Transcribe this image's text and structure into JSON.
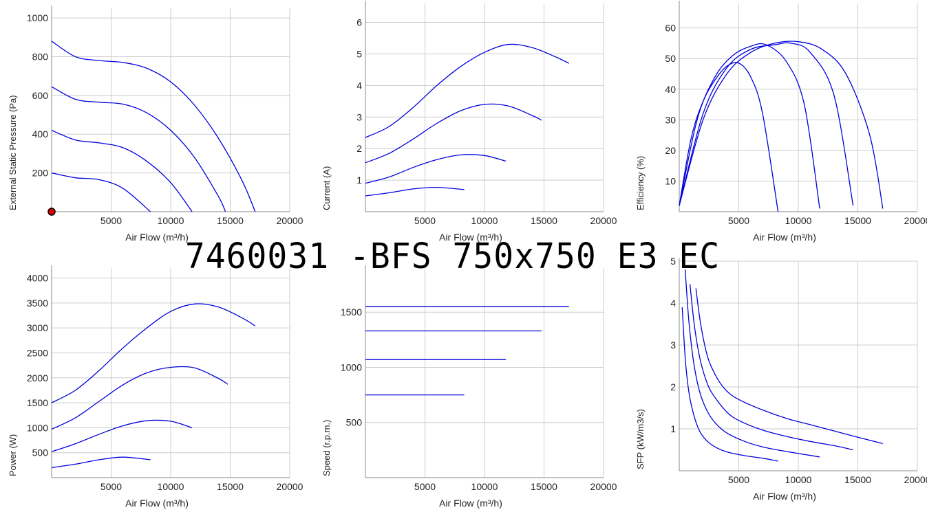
{
  "title": "7460031 -BFS 750x750 E3 EC",
  "colors": {
    "curve": "#0000dd",
    "grid": "#cccccc",
    "axis": "#888888",
    "marker_fill": "#dd0000"
  },
  "chart_data": [
    {
      "type": "line",
      "xlabel": "Air Flow (m³/h)",
      "ylabel": "External Static Pressure (Pa)",
      "xlim": [
        0,
        20000
      ],
      "ylim": [
        0,
        1050
      ],
      "xticks": [
        "5000",
        "10000",
        "15000",
        "20000"
      ],
      "yticks": [
        "200",
        "400",
        "600",
        "800",
        "1000"
      ],
      "marker": {
        "x": 0,
        "y": 0
      },
      "series": [
        {
          "x": [
            0,
            2000,
            4000,
            6000,
            8000,
            10000,
            12000,
            14000,
            16000,
            17100
          ],
          "y": [
            880,
            800,
            780,
            770,
            740,
            670,
            550,
            380,
            160,
            0
          ]
        },
        {
          "x": [
            0,
            2000,
            4000,
            6000,
            8000,
            10000,
            12000,
            14000,
            14600
          ],
          "y": [
            645,
            580,
            565,
            555,
            510,
            420,
            280,
            80,
            0
          ]
        },
        {
          "x": [
            0,
            2000,
            4000,
            6000,
            8000,
            10000,
            11800
          ],
          "y": [
            420,
            370,
            355,
            330,
            260,
            150,
            0
          ]
        },
        {
          "x": [
            0,
            2000,
            4000,
            6000,
            8300
          ],
          "y": [
            200,
            175,
            165,
            120,
            0
          ]
        }
      ]
    },
    {
      "type": "line",
      "xlabel": "Air Flow (m³/h)",
      "ylabel": "Current (A)",
      "xlim": [
        0,
        20000
      ],
      "ylim": [
        0,
        6.6
      ],
      "xticks": [
        "5000",
        "10000",
        "15000",
        "20000"
      ],
      "yticks": [
        "1",
        "2",
        "3",
        "4",
        "5",
        "6"
      ],
      "series": [
        {
          "x": [
            0,
            2000,
            4000,
            6000,
            8000,
            10000,
            12000,
            14000,
            16000,
            17100
          ],
          "y": [
            2.35,
            2.7,
            3.3,
            4.0,
            4.6,
            5.05,
            5.3,
            5.2,
            4.9,
            4.7
          ]
        },
        {
          "x": [
            0,
            2000,
            4000,
            6000,
            8000,
            10000,
            12000,
            14000,
            14800
          ],
          "y": [
            1.55,
            1.85,
            2.3,
            2.8,
            3.2,
            3.4,
            3.35,
            3.05,
            2.9
          ]
        },
        {
          "x": [
            0,
            2000,
            4000,
            6000,
            8000,
            10000,
            11800
          ],
          "y": [
            0.9,
            1.1,
            1.4,
            1.65,
            1.8,
            1.78,
            1.6
          ]
        },
        {
          "x": [
            0,
            2000,
            4000,
            6000,
            8300
          ],
          "y": [
            0.5,
            0.6,
            0.72,
            0.77,
            0.7
          ]
        }
      ]
    },
    {
      "type": "line",
      "xlabel": "Air Flow (m³/h)",
      "ylabel": "Efficiency (%)",
      "xlim": [
        0,
        20000
      ],
      "ylim": [
        0,
        68
      ],
      "xticks": [
        "5000",
        "10000",
        "15000",
        "20000"
      ],
      "yticks": [
        "10",
        "20",
        "30",
        "40",
        "50",
        "60"
      ],
      "series": [
        {
          "x": [
            0,
            2000,
            4000,
            6000,
            8000,
            10000,
            12000,
            14000,
            16000,
            17100
          ],
          "y": [
            2,
            30,
            45,
            52,
            55,
            55.5,
            53,
            45,
            25,
            1
          ]
        },
        {
          "x": [
            0,
            2000,
            4000,
            6000,
            8000,
            9400,
            11000,
            13000,
            14600
          ],
          "y": [
            2,
            32,
            47,
            53,
            54.5,
            55,
            52,
            38,
            2
          ]
        },
        {
          "x": [
            0,
            1500,
            3000,
            4500,
            6000,
            7300,
            9000,
            10500,
            11800
          ],
          "y": [
            2,
            30,
            44,
            51,
            54,
            54.5,
            49,
            35,
            1
          ]
        },
        {
          "x": [
            0,
            1000,
            2000,
            3000,
            4000,
            5000,
            6000,
            7000,
            8300
          ],
          "y": [
            2,
            24,
            36,
            43,
            47.5,
            48.5,
            44,
            32,
            0
          ]
        }
      ]
    },
    {
      "type": "line",
      "xlabel": "Air Flow (m³/h)",
      "ylabel": "Power (W)",
      "xlim": [
        0,
        20000
      ],
      "ylim": [
        0,
        4200
      ],
      "xticks": [
        "5000",
        "10000",
        "15000",
        "20000"
      ],
      "yticks": [
        "500",
        "1000",
        "1500",
        "2000",
        "2500",
        "3000",
        "3500",
        "4000"
      ],
      "series": [
        {
          "x": [
            0,
            2000,
            4000,
            6000,
            8000,
            10000,
            12000,
            14000,
            16000,
            17100
          ],
          "y": [
            1500,
            1750,
            2150,
            2600,
            3000,
            3330,
            3480,
            3420,
            3200,
            3040
          ]
        },
        {
          "x": [
            0,
            2000,
            4000,
            6000,
            8000,
            10000,
            12000,
            14000,
            14800
          ],
          "y": [
            970,
            1200,
            1530,
            1860,
            2100,
            2210,
            2200,
            1990,
            1870
          ]
        },
        {
          "x": [
            0,
            2000,
            4000,
            6000,
            8000,
            10000,
            11800
          ],
          "y": [
            520,
            680,
            870,
            1040,
            1140,
            1130,
            1000
          ]
        },
        {
          "x": [
            0,
            2000,
            4000,
            6000,
            8300
          ],
          "y": [
            200,
            270,
            360,
            410,
            360
          ]
        }
      ]
    },
    {
      "type": "line",
      "xlabel": "Air Flow (m³/h)",
      "ylabel": "Speed (r.p.m.)",
      "xlim": [
        0,
        20000
      ],
      "ylim": [
        0,
        1900
      ],
      "xticks": [
        "5000",
        "10000",
        "15000",
        "20000"
      ],
      "yticks": [
        "500",
        "1000",
        "1500"
      ],
      "series": [
        {
          "x": [
            0,
            17100
          ],
          "y": [
            1550,
            1550
          ]
        },
        {
          "x": [
            0,
            14800
          ],
          "y": [
            1330,
            1330
          ]
        },
        {
          "x": [
            0,
            11800
          ],
          "y": [
            1070,
            1070
          ]
        },
        {
          "x": [
            0,
            8300
          ],
          "y": [
            750,
            750
          ]
        }
      ]
    },
    {
      "type": "line",
      "xlabel": "Air Flow (m³/h)",
      "ylabel": "SFP (kW/m3/s)",
      "xlim": [
        0,
        20000
      ],
      "ylim": [
        0,
        5
      ],
      "xticks": [
        "5000",
        "10000",
        "15000",
        "20000"
      ],
      "yticks": [
        "1",
        "2",
        "3",
        "4",
        "5"
      ],
      "series": [
        {
          "x": [
            1400,
            1800,
            2400,
            3200,
            4000,
            5000,
            7000,
            9000,
            11000,
            13000,
            15000,
            17100
          ],
          "y": [
            4.35,
            3.5,
            2.7,
            2.2,
            1.9,
            1.7,
            1.45,
            1.25,
            1.1,
            0.95,
            0.8,
            0.65
          ]
        },
        {
          "x": [
            900,
            1300,
            1800,
            2400,
            3000,
            4000,
            5000,
            7000,
            9000,
            11000,
            13000,
            14600
          ],
          "y": [
            4.45,
            3.4,
            2.6,
            2.05,
            1.75,
            1.4,
            1.2,
            0.97,
            0.82,
            0.7,
            0.6,
            0.5
          ]
        },
        {
          "x": [
            500,
            800,
            1200,
            1700,
            2300,
            3000,
            4000,
            5500,
            7000,
            9000,
            11800
          ],
          "y": [
            4.8,
            3.6,
            2.6,
            1.9,
            1.45,
            1.15,
            0.9,
            0.7,
            0.57,
            0.46,
            0.33
          ]
        },
        {
          "x": [
            250,
            500,
            800,
            1200,
            1700,
            2300,
            3000,
            4000,
            5500,
            7000,
            8300
          ],
          "y": [
            3.9,
            2.7,
            1.9,
            1.35,
            0.95,
            0.72,
            0.57,
            0.45,
            0.36,
            0.3,
            0.23
          ]
        }
      ]
    }
  ]
}
